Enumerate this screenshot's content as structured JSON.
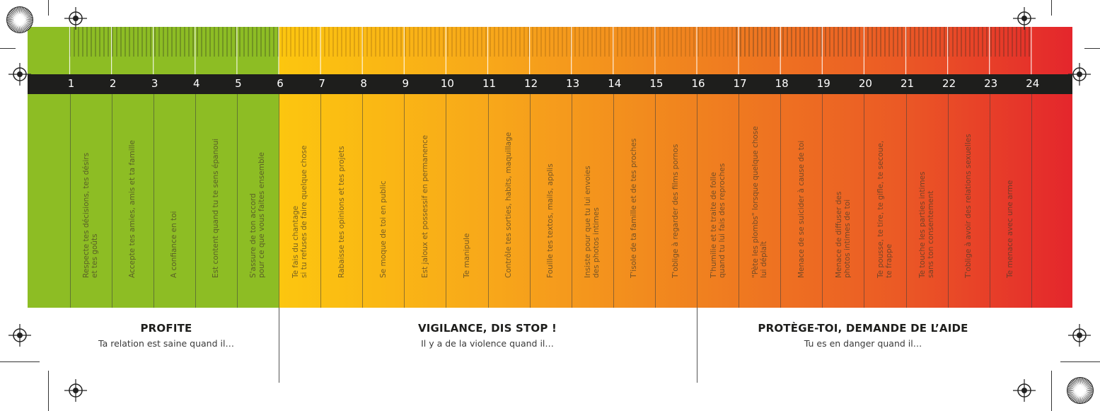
{
  "scale": {
    "numbers": [
      "1",
      "2",
      "3",
      "4",
      "5",
      "6",
      "7",
      "8",
      "9",
      "10",
      "11",
      "12",
      "13",
      "14",
      "15",
      "16",
      "17",
      "18",
      "19",
      "20",
      "21",
      "22",
      "23",
      "24"
    ],
    "colors": {
      "green": "#8dbd24",
      "yellow": "#fcc60f",
      "orange": "#f0811f",
      "red": "#e4262c",
      "bar": "#1e1e1c"
    }
  },
  "items": [
    "Respecte tes décisions, tes désirs\net tes goûts",
    "Accepte tes amies, amis et ta famille",
    "A confiance en toi",
    "Est content quand tu te sens épanoui",
    "S'assure de ton accord\npour ce que vous faites ensemble",
    "Te fais du chantage\nsi tu refuses de faire quelque chose",
    "Rabaisse tes opinions et tes projets",
    "Se moque de toi en public",
    "Est jaloux et possessif en permanence",
    "Te manipule",
    "Contrôle tes sorties, habits, maquillage",
    "Fouille tes textos, mails, applis",
    "Insiste pour que tu lui envoies\ndes photos intimes",
    "T'isole de ta famille et de tes proches",
    "T'oblige à regarder des films pornos",
    "T'humilie et te traite de folle\nquand tu lui fais des reproches",
    "\"Pète les plombs\" lorsque quelque chose\nlui déplaît",
    "Menace de se suicider à cause de toi",
    "Menace de diffuser des\nphotos intimes de toi",
    "Te pousse, te tire, te gifle, te secoue,\nte frappe",
    "Te touche les parties intimes\nsans ton consentement",
    "T'oblige à avoir des relations sexuelles",
    "Te menace avec une arme"
  ],
  "sections": [
    {
      "title": "PROFITE",
      "subtitle": "Ta relation est saine quand il…"
    },
    {
      "title": "VIGILANCE, DIS STOP !",
      "subtitle": "Il y a de la violence quand il…"
    },
    {
      "title": "PROTÈGE-TOI, DEMANDE DE L’AIDE",
      "subtitle": "Tu es en danger quand il…"
    }
  ]
}
